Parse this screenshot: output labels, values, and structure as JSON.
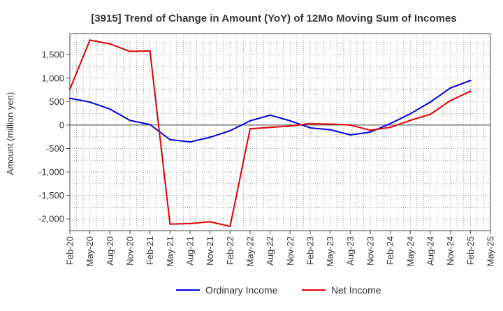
{
  "chart_data": {
    "type": "line",
    "title": "[3915]  Trend of Change in Amount (YoY) of 12Mo Moving Sum of Incomes",
    "xlabel": "",
    "ylabel": "Amount (million yen)",
    "ylim": [
      -2250,
      1950
    ],
    "yticks": [
      -2000,
      -1500,
      -1000,
      -500,
      0,
      500,
      1000,
      1500
    ],
    "ytick_labels": [
      "-2,000",
      "-1,500",
      "-1,000",
      "-500",
      "0",
      "500",
      "1,000",
      "1,500"
    ],
    "x": [
      "Feb-20",
      "May-20",
      "Aug-20",
      "Nov-20",
      "Feb-21",
      "May-21",
      "Aug-21",
      "Nov-21",
      "Feb-22",
      "May-22",
      "Aug-22",
      "Nov-22",
      "Feb-23",
      "May-23",
      "Aug-23",
      "Nov-23",
      "Feb-24",
      "May-24",
      "Aug-24",
      "Nov-24",
      "Feb-25",
      "May-25"
    ],
    "grid": true,
    "legend_position": "bottom-center",
    "series": [
      {
        "name": "Ordinary Income",
        "color": "#0000dd",
        "values": [
          570,
          490,
          340,
          100,
          10,
          -310,
          -360,
          -260,
          -120,
          90,
          210,
          90,
          -60,
          -100,
          -210,
          -150,
          30,
          240,
          490,
          790,
          950,
          null
        ]
      },
      {
        "name": "Net Income",
        "color": "#dd0000",
        "values": [
          760,
          1810,
          1730,
          1570,
          1580,
          -2110,
          -2100,
          -2060,
          -2160,
          -80,
          -50,
          -20,
          30,
          20,
          0,
          -110,
          -50,
          100,
          230,
          520,
          720,
          null
        ]
      }
    ]
  }
}
